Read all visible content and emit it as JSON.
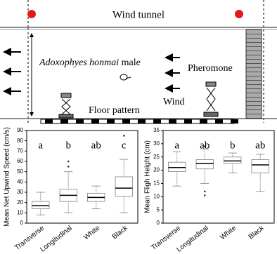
{
  "diagram": {
    "title": "Wind tunnel",
    "species": "Adoxophyes honmai",
    "species_suffix": "male",
    "pheromone": "Pheromone",
    "wind": "Wind",
    "floor": "Floor pattern"
  },
  "chart_data": [
    {
      "type": "box",
      "y_label": "Mean Net Upwind Speed (cm/s)",
      "categories": [
        "Transverse",
        "Longitudinal",
        "White",
        "Black"
      ],
      "letters": [
        "a",
        "b",
        "ab",
        "c"
      ],
      "boxes": [
        {
          "min": 8,
          "q1": 14,
          "median": 17,
          "q3": 21,
          "max": 30,
          "outliers": []
        },
        {
          "min": 10,
          "q1": 21,
          "median": 27,
          "q3": 33,
          "max": 50,
          "outliers": [
            55,
            60
          ]
        },
        {
          "min": 14,
          "q1": 21,
          "median": 25,
          "q3": 29,
          "max": 36,
          "outliers": []
        },
        {
          "min": 10,
          "q1": 26,
          "median": 34,
          "q3": 45,
          "max": 62,
          "outliers": [
            85
          ]
        }
      ],
      "ylim": [
        0,
        90
      ],
      "yticks": [
        0,
        10,
        20,
        30,
        40,
        50,
        60,
        70,
        80,
        90
      ]
    },
    {
      "type": "box",
      "y_label": "Mean Fligh Height (cm)",
      "categories": [
        "Transverse",
        "Longitudinal",
        "White",
        "Black"
      ],
      "letters": [
        "a",
        "ab",
        "b",
        "ab"
      ],
      "boxes": [
        {
          "min": 14,
          "q1": 19.5,
          "median": 21,
          "q3": 23,
          "max": 27,
          "outliers": []
        },
        {
          "min": 15,
          "q1": 20.5,
          "median": 22.5,
          "q3": 24,
          "max": 28,
          "outliers": [
            10.5,
            12,
            29
          ]
        },
        {
          "min": 19,
          "q1": 22.5,
          "median": 23.5,
          "q3": 25,
          "max": 26.5,
          "outliers": []
        },
        {
          "min": 12,
          "q1": 19,
          "median": 22,
          "q3": 24,
          "max": 26,
          "outliers": []
        }
      ],
      "ylim": [
        0,
        35
      ],
      "yticks": [
        0,
        5,
        10,
        15,
        20,
        25,
        30,
        35
      ]
    }
  ]
}
